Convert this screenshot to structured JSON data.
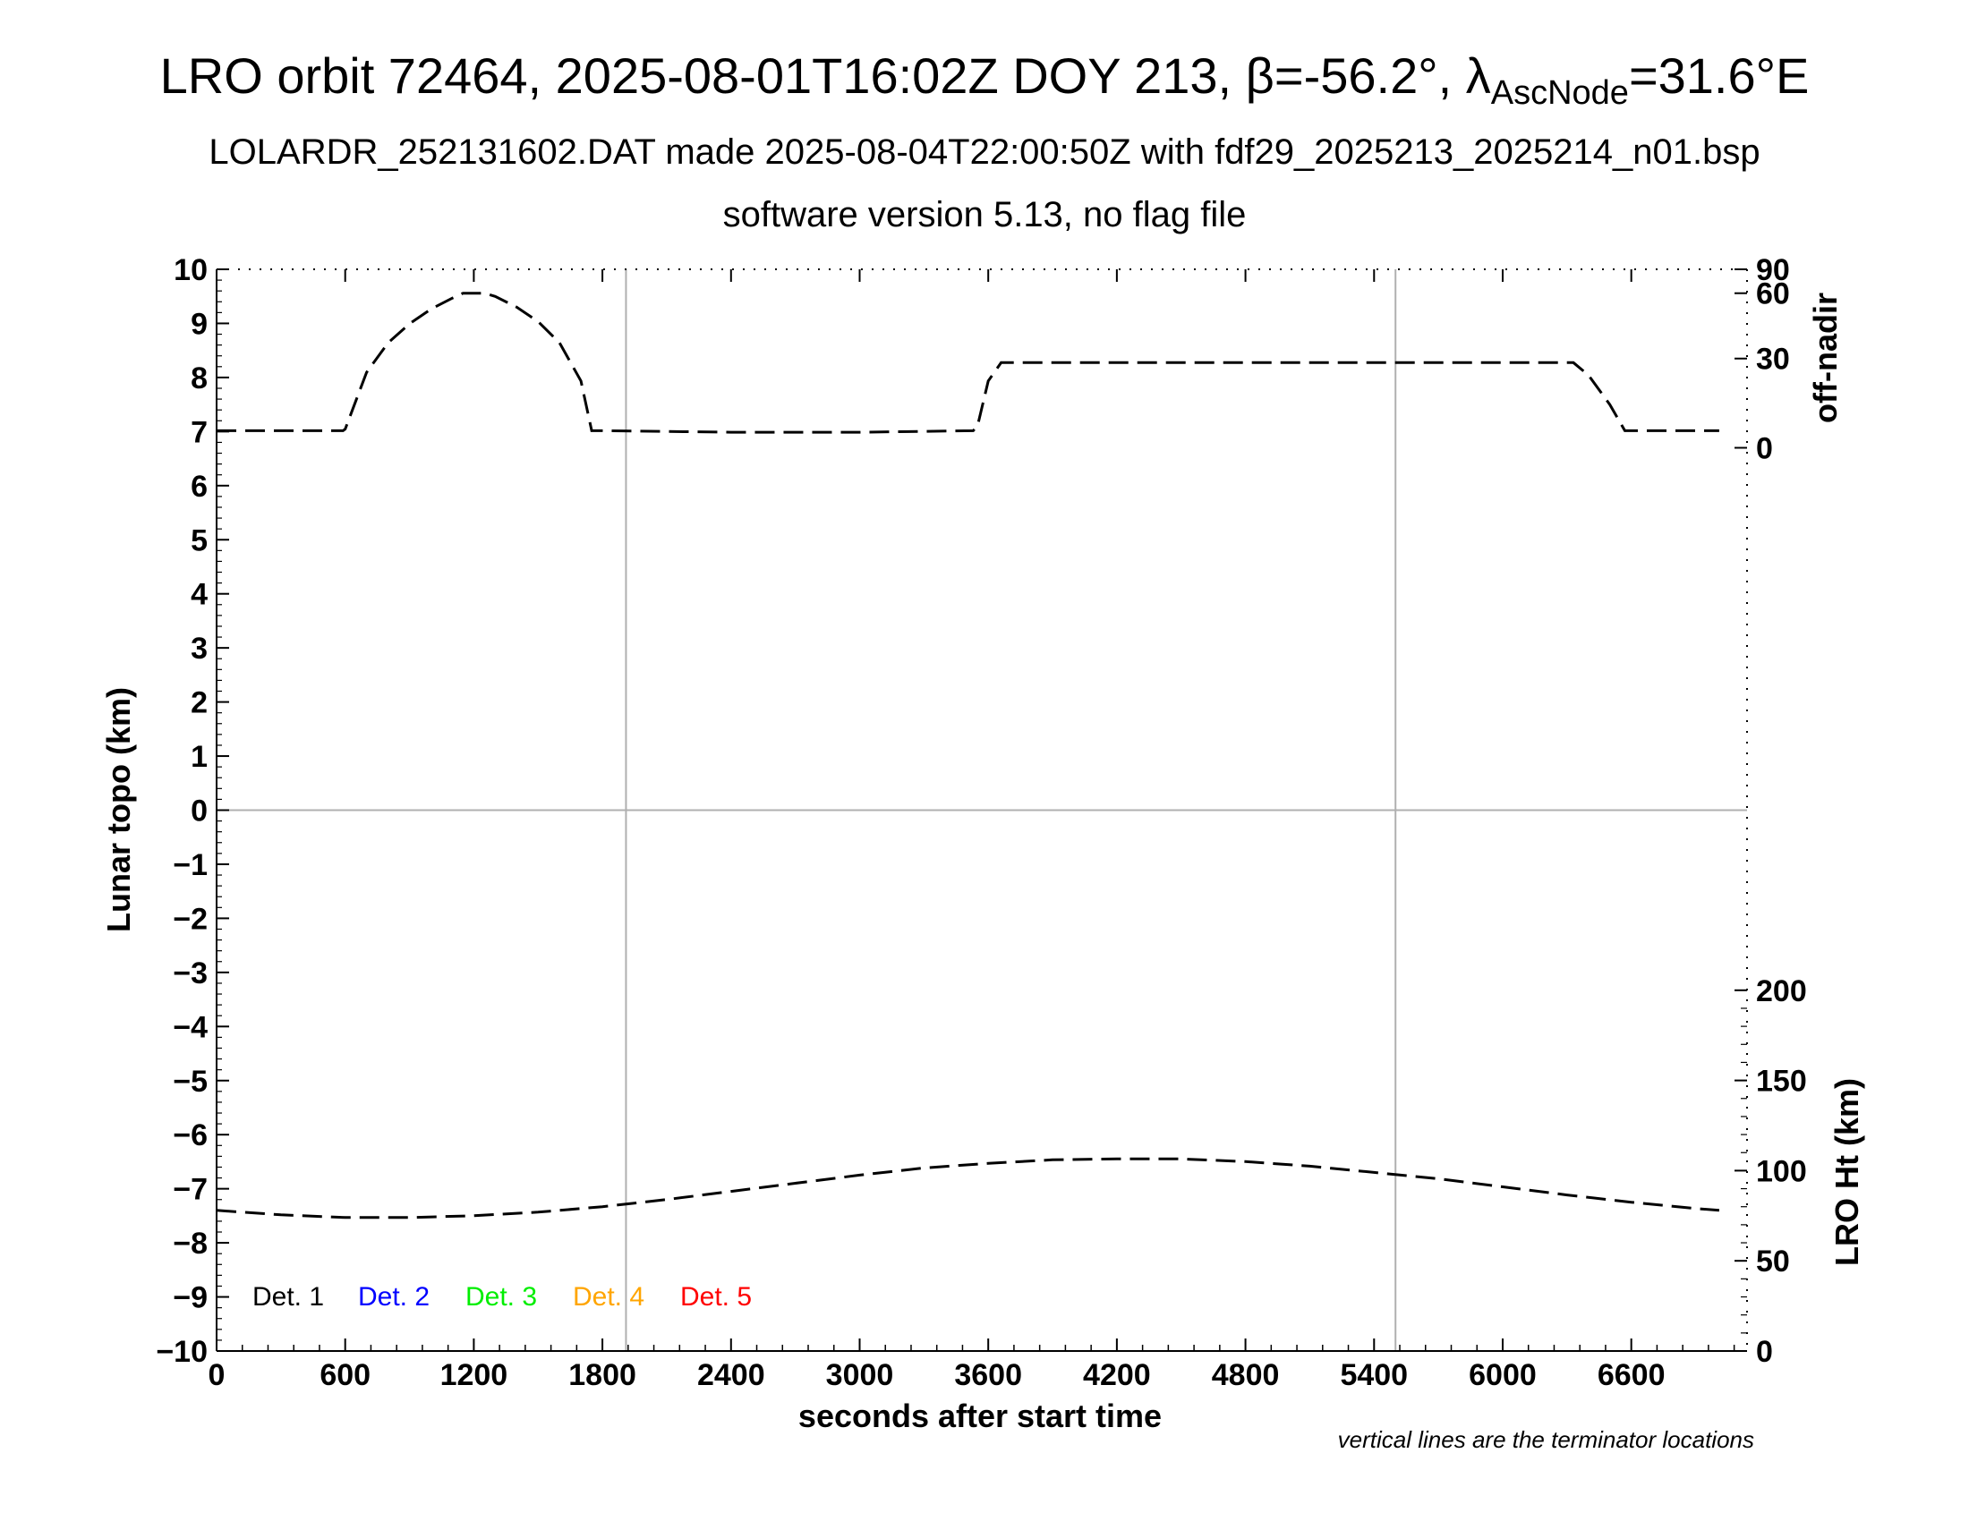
{
  "header": {
    "title_main": "LRO orbit 72464, 2025-08-01T16:02Z DOY 213, β=-56.2°, λ",
    "title_sub": "AscNode",
    "title_end": "=31.6°E",
    "subtitle_1": "LOLARDR_252131602.DAT made 2025-08-04T22:00:50Z with fdf29_2025213_2025214_n01.bsp",
    "subtitle_2": "software version 5.13, no flag file"
  },
  "chart_data": {
    "type": "line",
    "xlabel": "seconds after start time",
    "ylabel_left": "Lunar topo (km)",
    "ylabel_right_top": "off-nadir",
    "ylabel_right_bottom": "LRO Ht (km)",
    "note": "vertical lines are the terminator locations",
    "xlim": [
      0,
      7140
    ],
    "ylim": [
      -10,
      10
    ],
    "x_ticks": [
      0,
      600,
      1200,
      1800,
      2400,
      3000,
      3600,
      4200,
      4800,
      5400,
      6000,
      6600
    ],
    "y_ticks": [
      10,
      9,
      8,
      7,
      6,
      5,
      4,
      3,
      2,
      1,
      0,
      -1,
      -2,
      -3,
      -4,
      -5,
      -6,
      -7,
      -8,
      -9,
      -10
    ],
    "y_tick_labels": [
      "10",
      "9",
      "8",
      "7",
      "6",
      "5",
      "4",
      "3",
      "2",
      "1",
      "0",
      "−1",
      "−2",
      "−3",
      "−4",
      "−5",
      "−6",
      "−7",
      "−8",
      "−9",
      "−10"
    ],
    "off_nadir_ticks": [
      0,
      30,
      60,
      90
    ],
    "height_ticks": [
      0,
      50,
      100,
      150,
      200
    ],
    "terminator_x": [
      1910,
      5500
    ],
    "zero_line_y": 0,
    "grid": false,
    "legend_position": "bottom-left",
    "legend": [
      {
        "label": "Det. 1",
        "color": "#000000"
      },
      {
        "label": "Det. 2",
        "color": "#0000ff"
      },
      {
        "label": "Det. 3",
        "color": "#00ee00"
      },
      {
        "label": "Det. 4",
        "color": "#ffa500"
      },
      {
        "label": "Det. 5",
        "color": "#ff0000"
      }
    ],
    "series": [
      {
        "axis": "off-nadir (deg)",
        "color": "#000000",
        "dash": "dashed",
        "points": [
          [
            0,
            5.5
          ],
          [
            590,
            5.5
          ],
          [
            600,
            6
          ],
          [
            700,
            25
          ],
          [
            800,
            36
          ],
          [
            900,
            44
          ],
          [
            1000,
            51
          ],
          [
            1100,
            57
          ],
          [
            1150,
            60
          ],
          [
            1250,
            60
          ],
          [
            1300,
            58
          ],
          [
            1400,
            52
          ],
          [
            1500,
            45
          ],
          [
            1600,
            36
          ],
          [
            1700,
            22
          ],
          [
            1750,
            5.5
          ],
          [
            1800,
            5.5
          ],
          [
            2400,
            5
          ],
          [
            3000,
            5
          ],
          [
            3530,
            5.5
          ],
          [
            3550,
            7
          ],
          [
            3600,
            22
          ],
          [
            3660,
            28.5
          ],
          [
            6330,
            28.5
          ],
          [
            6400,
            24
          ],
          [
            6500,
            14
          ],
          [
            6570,
            5.5
          ],
          [
            7010,
            5.5
          ]
        ]
      },
      {
        "axis": "LRO Ht (km)",
        "color": "#000000",
        "dash": "dashed",
        "points": [
          [
            0,
            78
          ],
          [
            300,
            75.5
          ],
          [
            600,
            74
          ],
          [
            900,
            74
          ],
          [
            1200,
            75
          ],
          [
            1500,
            77
          ],
          [
            1800,
            80
          ],
          [
            2100,
            84
          ],
          [
            2400,
            88.5
          ],
          [
            2700,
            93
          ],
          [
            3000,
            97.5
          ],
          [
            3300,
            101.5
          ],
          [
            3600,
            104
          ],
          [
            3900,
            106
          ],
          [
            4200,
            106.5
          ],
          [
            4500,
            106.5
          ],
          [
            4800,
            105
          ],
          [
            5100,
            102.5
          ],
          [
            5400,
            99
          ],
          [
            5700,
            95.5
          ],
          [
            6000,
            91
          ],
          [
            6300,
            86.5
          ],
          [
            6600,
            82.5
          ],
          [
            6900,
            79
          ],
          [
            7010,
            78
          ]
        ]
      }
    ]
  }
}
